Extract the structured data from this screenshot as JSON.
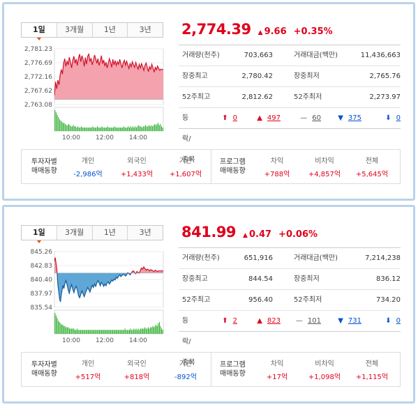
{
  "panels": [
    {
      "tabs": [
        "1일",
        "3개월",
        "1년",
        "3년"
      ],
      "active_tab": 0,
      "price": "2,774.39",
      "change": "9.66",
      "change_pct": "+0.35%",
      "stats": {
        "volume_label": "거래량(천주)",
        "volume": "703,663",
        "amount_label": "거래대금(백만)",
        "amount": "11,436,663",
        "high_label": "장중최고",
        "high": "2,780.42",
        "low_label": "장중최저",
        "low": "2,765.76",
        "w52_high_label": "52주최고",
        "w52_high": "2,812.62",
        "w52_low_label": "52주최저",
        "w52_low": "2,273.97",
        "updown_label": "등락/종목",
        "up_limit": "0",
        "up": "497",
        "flat": "60",
        "down": "375",
        "down_limit": "0"
      },
      "investor": {
        "title_1": "투자자별",
        "title_2": "매매동향",
        "cols": [
          {
            "label": "개인",
            "value": "-2,986억",
            "sign": "neg"
          },
          {
            "label": "외국인",
            "value": "+1,433억",
            "sign": "pos"
          },
          {
            "label": "기관",
            "value": "+1,607억",
            "sign": "pos"
          }
        ]
      },
      "program": {
        "title_1": "프로그램",
        "title_2": "매매동향",
        "cols": [
          {
            "label": "차익",
            "value": "+788억",
            "sign": "pos"
          },
          {
            "label": "비차익",
            "value": "+4,857억",
            "sign": "pos"
          },
          {
            "label": "전체",
            "value": "+5,645억",
            "sign": "pos"
          }
        ]
      },
      "chart_data": {
        "type": "area",
        "y_ticks": [
          "2,781.23",
          "2,776.69",
          "2,772.16",
          "2,767.62",
          "2,763.08"
        ],
        "ylim": [
          2763.08,
          2781.23
        ],
        "x_ticks": [
          "10:00",
          "12:00",
          "14:00"
        ],
        "reference": 2764.73,
        "fill_color": "#f4a3ae",
        "line_color": "#d0102a",
        "volume_color": "#22aa22",
        "x": [
          0,
          4,
          8,
          12,
          16,
          20,
          24,
          28,
          32,
          36,
          40,
          44,
          48,
          52,
          56,
          60,
          64,
          68,
          72,
          76,
          80,
          84,
          88,
          92,
          96,
          100,
          104,
          108,
          112,
          116,
          120,
          124,
          128,
          132,
          136,
          140,
          144,
          148,
          152,
          156,
          160,
          164,
          168,
          172,
          176,
          180,
          184,
          188,
          192,
          196,
          200,
          204,
          208,
          212,
          216,
          220,
          224,
          228,
          232,
          236,
          240,
          244,
          248,
          252,
          256,
          260,
          264,
          268,
          272,
          276,
          280,
          284,
          288,
          292,
          296,
          300,
          304,
          308,
          312,
          316,
          320,
          324,
          328,
          332,
          336,
          340,
          344,
          348,
          352,
          356,
          360,
          364,
          368,
          372,
          380
        ],
        "y": [
          2766.0,
          2770.5,
          2768.2,
          2771.0,
          2769.5,
          2772.8,
          2774.5,
          2773.0,
          2776.5,
          2778.0,
          2775.5,
          2777.2,
          2776.0,
          2778.5,
          2776.8,
          2775.0,
          2777.5,
          2778.8,
          2776.5,
          2777.9,
          2775.8,
          2778.2,
          2779.5,
          2777.0,
          2779.0,
          2777.8,
          2775.5,
          2778.4,
          2776.2,
          2778.8,
          2779.5,
          2777.0,
          2778.2,
          2776.0,
          2777.4,
          2779.2,
          2778.0,
          2776.5,
          2778.0,
          2775.8,
          2777.2,
          2779.0,
          2776.4,
          2777.6,
          2775.6,
          2776.9,
          2775.0,
          2776.6,
          2778.0,
          2776.8,
          2775.2,
          2777.8,
          2776.0,
          2777.4,
          2775.8,
          2777.0,
          2776.2,
          2777.8,
          2776.4,
          2775.0,
          2776.6,
          2777.5,
          2775.9,
          2777.2,
          2776.0,
          2774.8,
          2776.4,
          2775.4,
          2777.0,
          2776.0,
          2775.2,
          2776.8,
          2775.6,
          2774.6,
          2776.2,
          2775.0,
          2776.4,
          2775.5,
          2774.2,
          2775.8,
          2776.6,
          2775.2,
          2773.8,
          2775.4,
          2774.6,
          2776.2,
          2775.0,
          2773.6,
          2775.2,
          2774.4,
          2775.6,
          2774.8,
          2774.2,
          2774.6,
          2774.4
        ],
        "volume": [
          18,
          16,
          14,
          12,
          10,
          9,
          8,
          7,
          7,
          6,
          5,
          5,
          6,
          5,
          4,
          4,
          5,
          4,
          4,
          3,
          4,
          3,
          3,
          4,
          3,
          3,
          3,
          3,
          3,
          3,
          3,
          3,
          3,
          4,
          3,
          3,
          3,
          4,
          3,
          3,
          3,
          4,
          3,
          3,
          3,
          3,
          4,
          3,
          3,
          3,
          3,
          3,
          4,
          3,
          3,
          3,
          3,
          3,
          3,
          3,
          4,
          3,
          3,
          3,
          4,
          3,
          4,
          3,
          4,
          3,
          4,
          3,
          4,
          5,
          4,
          4,
          3,
          4,
          4,
          5,
          4,
          4,
          5,
          4,
          5,
          4,
          5,
          6,
          5,
          6,
          7,
          5,
          6,
          4,
          3
        ]
      }
    },
    {
      "tabs": [
        "1일",
        "3개월",
        "1년",
        "3년"
      ],
      "active_tab": 0,
      "price": "841.99",
      "change": "0.47",
      "change_pct": "+0.06%",
      "stats": {
        "volume_label": "거래량(천주)",
        "volume": "651,916",
        "amount_label": "거래대금(백만)",
        "amount": "7,214,238",
        "high_label": "장중최고",
        "high": "844.54",
        "low_label": "장중최저",
        "low": "836.12",
        "w52_high_label": "52주최고",
        "w52_high": "956.40",
        "w52_low_label": "52주최저",
        "w52_low": "734.20",
        "updown_label": "등락/종목",
        "up_limit": "2",
        "up": "823",
        "flat": "101",
        "down": "731",
        "down_limit": "0"
      },
      "investor": {
        "title_1": "투자자별",
        "title_2": "매매동향",
        "cols": [
          {
            "label": "개인",
            "value": "+517억",
            "sign": "pos"
          },
          {
            "label": "외국인",
            "value": "+818억",
            "sign": "pos"
          },
          {
            "label": "기관",
            "value": "-892억",
            "sign": "neg"
          }
        ]
      },
      "program": {
        "title_1": "프로그램",
        "title_2": "매매동향",
        "cols": [
          {
            "label": "차익",
            "value": "+17억",
            "sign": "pos"
          },
          {
            "label": "비차익",
            "value": "+1,098억",
            "sign": "pos"
          },
          {
            "label": "전체",
            "value": "+1,115억",
            "sign": "pos"
          }
        ]
      },
      "chart_data": {
        "type": "area",
        "y_ticks": [
          "845.26",
          "842.83",
          "840.40",
          "837.97",
          "835.54"
        ],
        "ylim": [
          835.54,
          845.26
        ],
        "x_ticks": [
          "10:00",
          "12:00",
          "14:00"
        ],
        "reference": 841.52,
        "fill_color": "#e8a0a8",
        "fill_color_below": "#5fa7d6",
        "line_color": "#d0102a",
        "line_color_below": "#1a5a9a",
        "volume_color": "#22aa22",
        "x": [
          0,
          3,
          6,
          9,
          12,
          15,
          18,
          21,
          24,
          27,
          30,
          33,
          36,
          40,
          44,
          48,
          52,
          56,
          60,
          64,
          68,
          72,
          76,
          80,
          84,
          88,
          92,
          96,
          100,
          104,
          108,
          112,
          116,
          120,
          124,
          128,
          132,
          136,
          140,
          144,
          148,
          152,
          156,
          160,
          164,
          168,
          172,
          176,
          180,
          184,
          188,
          192,
          196,
          200,
          204,
          208,
          212,
          216,
          220,
          224,
          228,
          232,
          236,
          240,
          244,
          248,
          252,
          256,
          260,
          264,
          268,
          272,
          276,
          280,
          284,
          288,
          292,
          296,
          300,
          304,
          308,
          312,
          316,
          320,
          324,
          328,
          332,
          336,
          340,
          344,
          348,
          352,
          356,
          360,
          364,
          368,
          372,
          380
        ],
        "y": [
          843.6,
          844.2,
          843.0,
          841.8,
          839.5,
          838.2,
          837.0,
          836.5,
          837.8,
          838.6,
          839.4,
          838.8,
          839.6,
          840.2,
          839.5,
          838.6,
          838.0,
          838.9,
          839.5,
          838.7,
          838.1,
          838.8,
          839.2,
          838.6,
          837.6,
          837.2,
          837.8,
          838.4,
          837.9,
          837.4,
          838.0,
          838.5,
          839.0,
          838.6,
          838.2,
          838.8,
          839.4,
          839.0,
          839.6,
          839.2,
          839.8,
          840.2,
          839.8,
          839.3,
          839.9,
          839.6,
          839.2,
          839.6,
          839.3,
          839.8,
          840.0,
          839.6,
          839.9,
          840.3,
          840.1,
          840.5,
          840.3,
          840.8,
          840.6,
          841.0,
          841.2,
          840.9,
          841.1,
          841.3,
          841.2,
          841.0,
          841.2,
          841.6,
          841.4,
          841.2,
          841.5,
          841.8,
          841.9,
          841.6,
          841.4,
          841.8,
          841.6,
          841.5,
          842.0,
          842.4,
          842.2,
          842.6,
          842.3,
          842.0,
          842.2,
          842.1,
          841.9,
          842.1,
          842.0,
          841.9,
          841.8,
          842.0,
          841.9,
          841.8,
          841.9,
          841.9,
          841.9,
          841.9
        ],
        "volume": [
          16,
          14,
          12,
          10,
          9,
          8,
          7,
          7,
          6,
          6,
          5,
          5,
          5,
          4,
          4,
          4,
          4,
          4,
          3,
          3,
          4,
          3,
          3,
          3,
          3,
          3,
          3,
          3,
          3,
          3,
          3,
          3,
          3,
          3,
          3,
          3,
          3,
          3,
          3,
          3,
          3,
          3,
          3,
          3,
          3,
          3,
          3,
          3,
          3,
          3,
          3,
          3,
          3,
          3,
          3,
          3,
          3,
          3,
          3,
          3,
          3,
          3,
          3,
          4,
          3,
          3,
          3,
          3,
          4,
          3,
          3,
          4,
          3,
          4,
          3,
          4,
          3,
          4,
          4,
          4,
          4,
          5,
          4,
          4,
          5,
          4,
          5,
          5,
          6,
          5,
          6,
          7,
          6,
          8,
          9,
          6,
          4,
          3
        ]
      }
    }
  ]
}
